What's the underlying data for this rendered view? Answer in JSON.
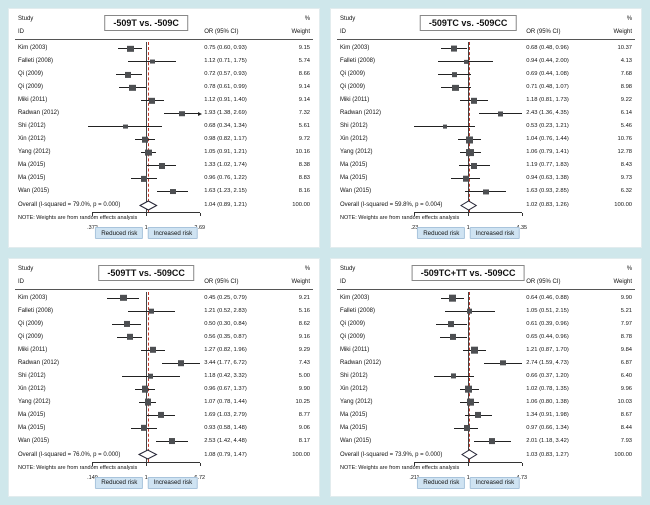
{
  "labels": {
    "study": "Study",
    "id": "ID",
    "percent": "%",
    "or_ci": "OR (95% CI)",
    "weight": "Weight",
    "note": "NOTE: Weights are from random effects analysis",
    "reduced_risk": "Reduced risk",
    "increased_risk": "Increased risk"
  },
  "colors": {
    "background": "#cfe7eb",
    "panel": "#ffffff",
    "marker": "#4d4f52",
    "overall_line": "#c0392b",
    "risk_box": "#cfe3f2"
  },
  "chart_data": [
    {
      "type": "forest",
      "title": "-509T vs. -509C",
      "xlim": [
        0.372,
        2.69
      ],
      "null_value": 1,
      "axis_ticks": [
        ".372",
        "1",
        "2.69"
      ],
      "studies": [
        {
          "id": "Kim (2003)",
          "or": 0.75,
          "lo": 0.6,
          "hi": 0.93,
          "label": "0.75 (0.60, 0.93)",
          "weight": "9.15",
          "w": 9.15
        },
        {
          "id": "Falleti (2008)",
          "or": 1.12,
          "lo": 0.71,
          "hi": 1.75,
          "label": "1.12 (0.71, 1.75)",
          "weight": "5.74",
          "w": 5.74
        },
        {
          "id": "Qi (2009)",
          "or": 0.72,
          "lo": 0.57,
          "hi": 0.93,
          "label": "0.72 (0.57, 0.93)",
          "weight": "8.66",
          "w": 8.66
        },
        {
          "id": "Qi (2009)",
          "or": 0.78,
          "lo": 0.61,
          "hi": 0.99,
          "label": "0.78 (0.61, 0.99)",
          "weight": "9.14",
          "w": 9.14
        },
        {
          "id": "Miki (2011)",
          "or": 1.12,
          "lo": 0.91,
          "hi": 1.4,
          "label": "1.12 (0.91, 1.40)",
          "weight": "9.14",
          "w": 9.14
        },
        {
          "id": "Radwan (2012)",
          "or": 1.93,
          "lo": 1.38,
          "hi": 2.69,
          "label": "1.93 (1.38, 2.69)",
          "weight": "7.32",
          "w": 7.32,
          "arrow": true
        },
        {
          "id": "Shi (2012)",
          "or": 0.68,
          "lo": 0.34,
          "hi": 1.34,
          "label": "0.68 (0.34, 1.34)",
          "weight": "5.61",
          "w": 5.61
        },
        {
          "id": "Xin (2012)",
          "or": 0.98,
          "lo": 0.82,
          "hi": 1.17,
          "label": "0.98 (0.82, 1.17)",
          "weight": "9.72",
          "w": 9.72
        },
        {
          "id": "Yang (2012)",
          "or": 1.05,
          "lo": 0.91,
          "hi": 1.21,
          "label": "1.05 (0.91, 1.21)",
          "weight": "10.16",
          "w": 10.16
        },
        {
          "id": "Ma (2015)",
          "or": 1.33,
          "lo": 1.02,
          "hi": 1.74,
          "label": "1.33 (1.02, 1.74)",
          "weight": "8.38",
          "w": 8.38
        },
        {
          "id": "Ma (2015)",
          "or": 0.96,
          "lo": 0.76,
          "hi": 1.22,
          "label": "0.96 (0.76, 1.22)",
          "weight": "8.83",
          "w": 8.83
        },
        {
          "id": "Wan (2015)",
          "or": 1.63,
          "lo": 1.23,
          "hi": 2.15,
          "label": "1.63 (1.23, 2.15)",
          "weight": "8.16",
          "w": 8.16
        }
      ],
      "overall": {
        "id": "Overall (I-squared = 79.0%, p = 0.000)",
        "or": 1.04,
        "lo": 0.89,
        "hi": 1.21,
        "label": "1.04 (0.89, 1.21)",
        "weight": "100.00"
      }
    },
    {
      "type": "forest",
      "title": "-509TC vs. -509CC",
      "xlim": [
        0.23,
        4.35
      ],
      "null_value": 1,
      "axis_ticks": [
        ".23",
        "1",
        "4.35"
      ],
      "studies": [
        {
          "id": "Kim (2003)",
          "or": 0.68,
          "lo": 0.48,
          "hi": 0.96,
          "label": "0.68 (0.48, 0.96)",
          "weight": "10.37",
          "w": 10.37
        },
        {
          "id": "Falleti (2008)",
          "or": 0.94,
          "lo": 0.44,
          "hi": 2.0,
          "label": "0.94 (0.44, 2.00)",
          "weight": "4.13",
          "w": 4.13
        },
        {
          "id": "Qi (2009)",
          "or": 0.69,
          "lo": 0.44,
          "hi": 1.08,
          "label": "0.69 (0.44, 1.08)",
          "weight": "7.68",
          "w": 7.68
        },
        {
          "id": "Qi (2009)",
          "or": 0.71,
          "lo": 0.48,
          "hi": 1.07,
          "label": "0.71 (0.48, 1.07)",
          "weight": "8.98",
          "w": 8.98
        },
        {
          "id": "Miki (2011)",
          "or": 1.18,
          "lo": 0.81,
          "hi": 1.73,
          "label": "1.18 (0.81, 1.73)",
          "weight": "9.22",
          "w": 9.22
        },
        {
          "id": "Radwan (2012)",
          "or": 2.43,
          "lo": 1.36,
          "hi": 4.35,
          "label": "2.43 (1.36, 4.35)",
          "weight": "6.14",
          "w": 6.14
        },
        {
          "id": "Shi (2012)",
          "or": 0.53,
          "lo": 0.23,
          "hi": 1.21,
          "label": "0.53 (0.23, 1.21)",
          "weight": "5.46",
          "w": 5.46
        },
        {
          "id": "Xin (2012)",
          "or": 1.04,
          "lo": 0.76,
          "hi": 1.44,
          "label": "1.04 (0.76, 1.44)",
          "weight": "10.76",
          "w": 10.76
        },
        {
          "id": "Yang (2012)",
          "or": 1.06,
          "lo": 0.79,
          "hi": 1.41,
          "label": "1.06 (0.79, 1.41)",
          "weight": "12.78",
          "w": 12.78
        },
        {
          "id": "Ma (2015)",
          "or": 1.19,
          "lo": 0.77,
          "hi": 1.83,
          "label": "1.19 (0.77, 1.83)",
          "weight": "8.43",
          "w": 8.43
        },
        {
          "id": "Ma (2015)",
          "or": 0.94,
          "lo": 0.63,
          "hi": 1.38,
          "label": "0.94 (0.63, 1.38)",
          "weight": "9.73",
          "w": 9.73
        },
        {
          "id": "Wan (2015)",
          "or": 1.63,
          "lo": 0.93,
          "hi": 2.85,
          "label": "1.63 (0.93, 2.85)",
          "weight": "6.32",
          "w": 6.32
        }
      ],
      "overall": {
        "id": "Overall (I-squared = 59.8%, p = 0.004)",
        "or": 1.02,
        "lo": 0.83,
        "hi": 1.26,
        "label": "1.02 (0.83, 1.26)",
        "weight": "100.00"
      }
    },
    {
      "type": "forest",
      "title": "-509TT vs. -509CC",
      "xlim": [
        0.149,
        6.72
      ],
      "null_value": 1,
      "axis_ticks": [
        ".149",
        "1",
        "6.72"
      ],
      "studies": [
        {
          "id": "Kim (2003)",
          "or": 0.45,
          "lo": 0.25,
          "hi": 0.79,
          "label": "0.45 (0.25, 0.79)",
          "weight": "9.21",
          "w": 9.21
        },
        {
          "id": "Falleti (2008)",
          "or": 1.21,
          "lo": 0.52,
          "hi": 2.83,
          "label": "1.21 (0.52, 2.83)",
          "weight": "5.16",
          "w": 5.16
        },
        {
          "id": "Qi (2009)",
          "or": 0.5,
          "lo": 0.3,
          "hi": 0.84,
          "label": "0.50 (0.30, 0.84)",
          "weight": "8.62",
          "w": 8.62
        },
        {
          "id": "Qi (2009)",
          "or": 0.56,
          "lo": 0.35,
          "hi": 0.87,
          "label": "0.56 (0.35, 0.87)",
          "weight": "9.16",
          "w": 9.16
        },
        {
          "id": "Miki (2011)",
          "or": 1.27,
          "lo": 0.82,
          "hi": 1.96,
          "label": "1.27 (0.82, 1.96)",
          "weight": "9.29",
          "w": 9.29
        },
        {
          "id": "Radwan (2012)",
          "or": 3.44,
          "lo": 1.77,
          "hi": 6.72,
          "label": "3.44 (1.77, 6.72)",
          "weight": "7.43",
          "w": 7.43
        },
        {
          "id": "Shi (2012)",
          "or": 1.18,
          "lo": 0.42,
          "hi": 3.32,
          "label": "1.18 (0.42, 3.32)",
          "weight": "5.00",
          "w": 5.0
        },
        {
          "id": "Xin (2012)",
          "or": 0.96,
          "lo": 0.67,
          "hi": 1.37,
          "label": "0.96 (0.67, 1.37)",
          "weight": "9.90",
          "w": 9.9
        },
        {
          "id": "Yang (2012)",
          "or": 1.07,
          "lo": 0.78,
          "hi": 1.44,
          "label": "1.07 (0.78, 1.44)",
          "weight": "10.25",
          "w": 10.25
        },
        {
          "id": "Ma (2015)",
          "or": 1.69,
          "lo": 1.03,
          "hi": 2.79,
          "label": "1.69 (1.03, 2.79)",
          "weight": "8.77",
          "w": 8.77
        },
        {
          "id": "Ma (2015)",
          "or": 0.93,
          "lo": 0.58,
          "hi": 1.48,
          "label": "0.93 (0.58, 1.48)",
          "weight": "9.06",
          "w": 9.06
        },
        {
          "id": "Wan (2015)",
          "or": 2.53,
          "lo": 1.42,
          "hi": 4.48,
          "label": "2.53 (1.42, 4.48)",
          "weight": "8.17",
          "w": 8.17
        }
      ],
      "overall": {
        "id": "Overall (I-squared = 76.0%, p = 0.000)",
        "or": 1.08,
        "lo": 0.79,
        "hi": 1.47,
        "label": "1.08 (0.79, 1.47)",
        "weight": "100.00"
      }
    },
    {
      "type": "forest",
      "title": "-509TC+TT vs. -509CC",
      "xlim": [
        0.211,
        4.73
      ],
      "null_value": 1,
      "axis_ticks": [
        ".211",
        "1",
        "4.73"
      ],
      "studies": [
        {
          "id": "Kim (2003)",
          "or": 0.64,
          "lo": 0.46,
          "hi": 0.88,
          "label": "0.64 (0.46, 0.88)",
          "weight": "9.90",
          "w": 9.9
        },
        {
          "id": "Falleti (2008)",
          "or": 1.05,
          "lo": 0.51,
          "hi": 2.15,
          "label": "1.05 (0.51, 2.15)",
          "weight": "5.21",
          "w": 5.21
        },
        {
          "id": "Qi (2009)",
          "or": 0.61,
          "lo": 0.39,
          "hi": 0.96,
          "label": "0.61 (0.39, 0.96)",
          "weight": "7.97",
          "w": 7.97
        },
        {
          "id": "Qi (2009)",
          "or": 0.65,
          "lo": 0.44,
          "hi": 0.96,
          "label": "0.65 (0.44, 0.96)",
          "weight": "8.78",
          "w": 8.78
        },
        {
          "id": "Miki (2011)",
          "or": 1.21,
          "lo": 0.87,
          "hi": 1.7,
          "label": "1.21 (0.87, 1.70)",
          "weight": "9.84",
          "w": 9.84
        },
        {
          "id": "Radwan (2012)",
          "or": 2.74,
          "lo": 1.59,
          "hi": 4.73,
          "label": "2.74 (1.59, 4.73)",
          "weight": "6.87",
          "w": 6.87
        },
        {
          "id": "Shi (2012)",
          "or": 0.66,
          "lo": 0.37,
          "hi": 1.2,
          "label": "0.66 (0.37, 1.20)",
          "weight": "6.40",
          "w": 6.4
        },
        {
          "id": "Xin (2012)",
          "or": 1.02,
          "lo": 0.78,
          "hi": 1.35,
          "label": "1.02 (0.78, 1.35)",
          "weight": "9.96",
          "w": 9.96
        },
        {
          "id": "Yang (2012)",
          "or": 1.06,
          "lo": 0.8,
          "hi": 1.38,
          "label": "1.06 (0.80, 1.38)",
          "weight": "10.03",
          "w": 10.03
        },
        {
          "id": "Ma (2015)",
          "or": 1.34,
          "lo": 0.91,
          "hi": 1.98,
          "label": "1.34 (0.91, 1.98)",
          "weight": "8.67",
          "w": 8.67
        },
        {
          "id": "Ma (2015)",
          "or": 0.97,
          "lo": 0.66,
          "hi": 1.34,
          "label": "0.97 (0.66, 1.34)",
          "weight": "8.44",
          "w": 8.44
        },
        {
          "id": "Wan (2015)",
          "or": 2.01,
          "lo": 1.18,
          "hi": 3.42,
          "label": "2.01 (1.18, 3.42)",
          "weight": "7.93",
          "w": 7.93
        }
      ],
      "overall": {
        "id": "Overall (I-squared = 73.9%, p = 0.000)",
        "or": 1.03,
        "lo": 0.83,
        "hi": 1.27,
        "label": "1.03 (0.83, 1.27)",
        "weight": "100.00"
      }
    }
  ]
}
